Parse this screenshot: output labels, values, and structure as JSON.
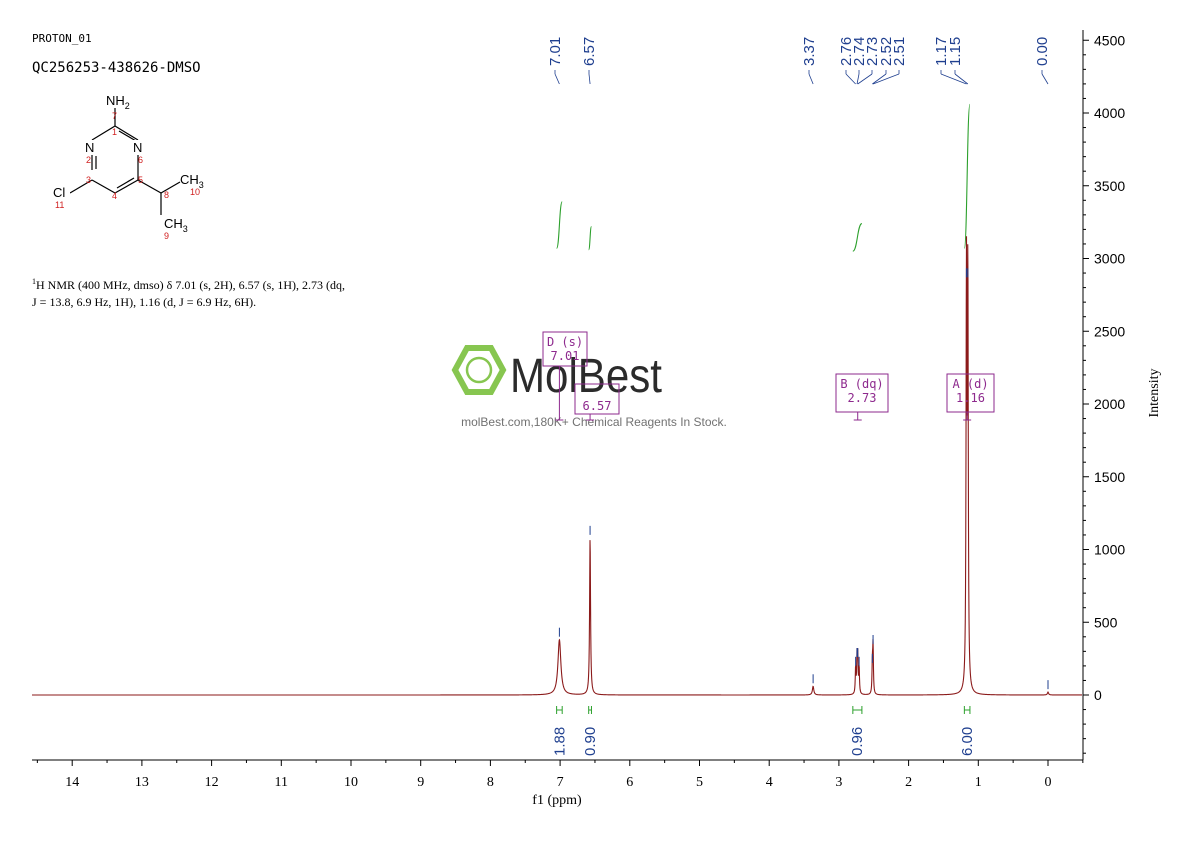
{
  "header": {
    "experiment": "PROTON_01",
    "sample": "QC256253-438626-DMSO"
  },
  "molecule": {
    "atoms": {
      "amine": "NH",
      "amine_sub": "2",
      "n_left": "N",
      "n_right": "N",
      "cl": "Cl",
      "ch3_top": "CH",
      "ch3_top_sub": "3",
      "ch3_bottom": "CH",
      "ch3_bottom_sub": "3"
    },
    "numbers": {
      "n1": "1",
      "n2": "2",
      "n3": "3",
      "n4": "4",
      "n5": "5",
      "n6": "6",
      "n7": "7",
      "n8": "8",
      "n9": "9",
      "n10": "10",
      "n11": "11"
    }
  },
  "description": {
    "line1": "H NMR (400 MHz, dmso) δ 7.01 (s, 2H), 6.57 (s, 1H), 2.73 (dq,",
    "line1_sup": "1",
    "line2": "J = 13.8, 6.9 Hz, 1H), 1.16 (d, J = 6.9 Hz, 6H)."
  },
  "watermark": {
    "brand": "MolBest",
    "tagline": "molBest.com,180K+ Chemical Reagents In Stock."
  },
  "colors": {
    "spectrum": "#8b1a1a",
    "integral": "#2ca02c",
    "peak_label": "#1f3f8f",
    "multiplet_box": "#8e2a8e",
    "axis": "#000000",
    "brand_green": "#7dc242",
    "brand_dark": "#1a1a1a"
  },
  "chart_data": {
    "type": "line",
    "xlabel": "f1 (ppm)",
    "ylabel": "Intensity",
    "xlim": [
      14.5,
      -0.5
    ],
    "ylim": [
      -450,
      4550
    ],
    "x_reversed": true,
    "x_ticks": [
      14,
      13,
      12,
      11,
      10,
      9,
      8,
      7,
      6,
      5,
      4,
      3,
      2,
      1,
      0
    ],
    "y_ticks": [
      0,
      500,
      1000,
      1500,
      2000,
      2500,
      3000,
      3500,
      4000,
      4500
    ],
    "y_axis_side": "right",
    "peaks": [
      {
        "ppm": 7.01,
        "height": 380,
        "width": 0.025
      },
      {
        "ppm": 6.57,
        "height": 1080,
        "width": 0.008
      },
      {
        "ppm": 3.37,
        "height": 60,
        "width": 0.012
      },
      {
        "ppm": 2.76,
        "height": 180,
        "width": 0.006
      },
      {
        "ppm": 2.74,
        "height": 240,
        "width": 0.006
      },
      {
        "ppm": 2.73,
        "height": 240,
        "width": 0.006
      },
      {
        "ppm": 2.71,
        "height": 180,
        "width": 0.006
      },
      {
        "ppm": 2.52,
        "height": 200,
        "width": 0.006
      },
      {
        "ppm": 2.51,
        "height": 330,
        "width": 0.006
      },
      {
        "ppm": 1.17,
        "height": 2850,
        "width": 0.007
      },
      {
        "ppm": 1.15,
        "height": 2850,
        "width": 0.007
      },
      {
        "ppm": 0.0,
        "height": 20,
        "width": 0.01
      }
    ],
    "peak_labels": [
      "7.01",
      "6.57",
      "3.37",
      "2.76",
      "2.74",
      "2.73",
      "2.52",
      "2.51",
      "1.17",
      "1.15",
      "0.00"
    ],
    "peak_label_positions": [
      7.01,
      6.57,
      3.37,
      2.76,
      2.74,
      2.73,
      2.52,
      2.51,
      1.17,
      1.15,
      0.0
    ],
    "integrals": [
      {
        "ppm": 7.01,
        "from": 7.05,
        "to": 6.97,
        "value": "1.88",
        "low": 3070,
        "high": 3390
      },
      {
        "ppm": 6.57,
        "from": 6.59,
        "to": 6.55,
        "value": "0.90",
        "low": 3060,
        "high": 3220
      },
      {
        "ppm": 2.74,
        "from": 2.8,
        "to": 2.67,
        "value": "0.96",
        "low": 3050,
        "high": 3240
      },
      {
        "ppm": 1.16,
        "from": 1.2,
        "to": 1.12,
        "value": "6.00",
        "low": 3070,
        "high": 4060
      }
    ],
    "multiplets": [
      {
        "letter": "D",
        "type": "(s)",
        "shift": "7.01",
        "ppm": 7.01
      },
      {
        "letter": "C",
        "type": "(s)",
        "shift": "6.57",
        "ppm": 6.57
      },
      {
        "letter": "B",
        "type": "(dq)",
        "shift": "2.73",
        "ppm": 2.73
      },
      {
        "letter": "A",
        "type": "(d)",
        "shift": "1.16",
        "ppm": 1.16
      }
    ]
  }
}
